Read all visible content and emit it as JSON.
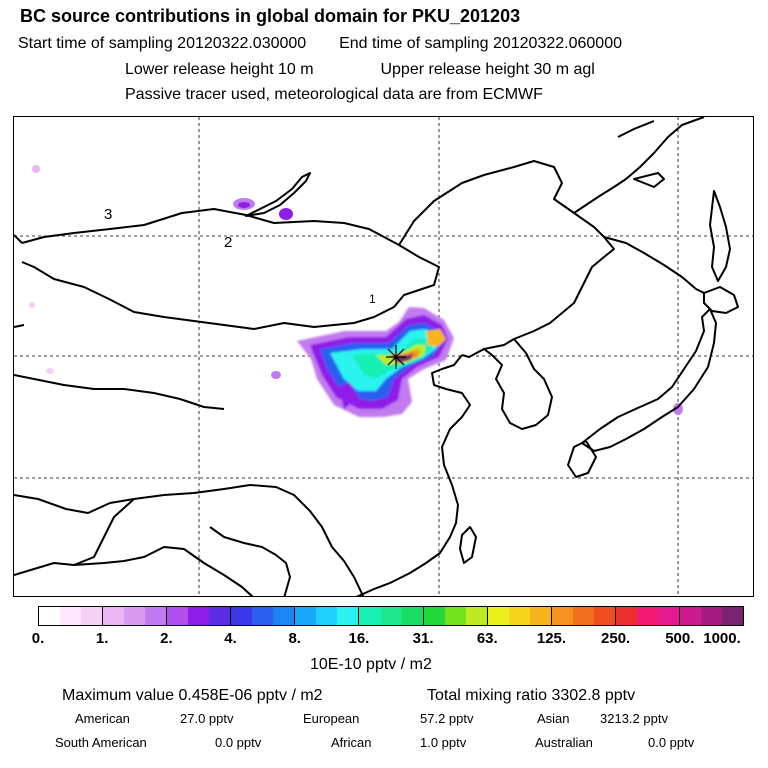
{
  "header": {
    "title": "BC  source contributions in global domain for PKU_201203",
    "start_label": "Start time of sampling 20120322.030000",
    "end_label": "End time of sampling 20120322.060000",
    "lower_label": "Lower release height   10 m",
    "upper_label": "Upper release height   30 m    agl",
    "note": "Passive tracer used, meteorological data are from ECMWF"
  },
  "map": {
    "contour_labels": [
      "3",
      "2",
      "1"
    ],
    "receptor_marker": "star-cross"
  },
  "colorbar": {
    "colors": [
      "#ffffff",
      "#fce7fc",
      "#f5cff5",
      "#eab6f0",
      "#d79cf0",
      "#c27af0",
      "#b14fef",
      "#8f1de8",
      "#5b2de6",
      "#3c3ae8",
      "#2c5ef0",
      "#1c84f5",
      "#17a8fa",
      "#1fd0fb",
      "#2cf3f0",
      "#18f0b5",
      "#1be68a",
      "#19dc61",
      "#22d838",
      "#74e21c",
      "#bdeb1f",
      "#eaf01c",
      "#f7d51c",
      "#f7b41f",
      "#f7921e",
      "#f36f20",
      "#ef4c1f",
      "#ed2e2e",
      "#f2176f",
      "#e51a8f",
      "#cc1b90",
      "#a51c80",
      "#7a2470"
    ],
    "labels": [
      "0.",
      "1.",
      "2.",
      "4.",
      "8.",
      "16.",
      "31.",
      "63.",
      "125.",
      "250.",
      "500.",
      "1000."
    ],
    "unit": "10E-10 pptv / m2"
  },
  "summary": {
    "max_label": "Maximum value  0.458E-06 pptv / m2",
    "total_label": "Total mixing ratio      3302.8 pptv",
    "rows": [
      [
        {
          "name": "American",
          "value": "27.0 pptv"
        },
        {
          "name": "European",
          "value": "57.2 pptv"
        },
        {
          "name": "Asian",
          "value": "3213.2 pptv"
        }
      ],
      [
        {
          "name": "South American",
          "value": "0.0 pptv"
        },
        {
          "name": "African",
          "value": "1.0 pptv"
        },
        {
          "name": "Australian",
          "value": "0.0 pptv"
        }
      ]
    ]
  }
}
